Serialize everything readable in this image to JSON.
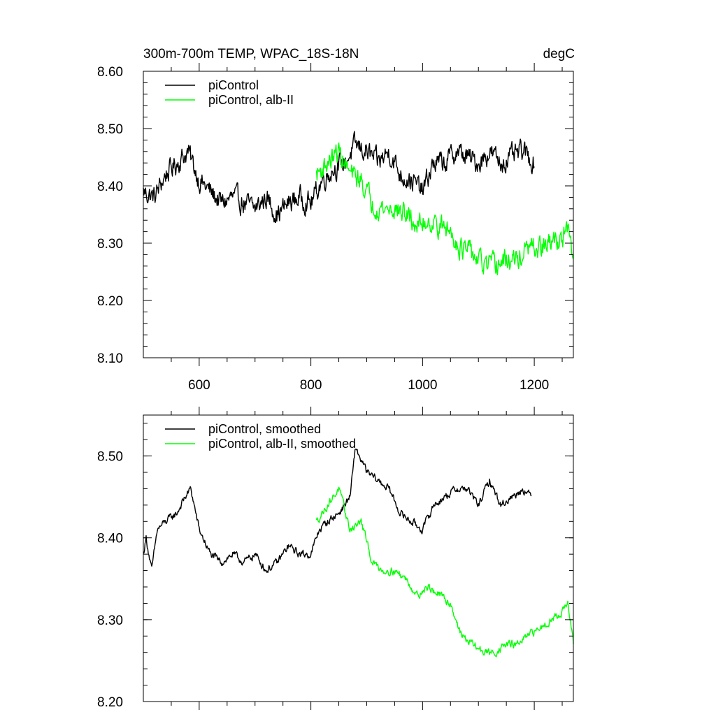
{
  "chart_data": [
    {
      "type": "line",
      "title": "300m-700m TEMP, WPAC_18S-18N",
      "units": "degC",
      "xlim": [
        500,
        1270
      ],
      "ylim": [
        8.1,
        8.6
      ],
      "xticks": [
        600,
        800,
        1000,
        1200
      ],
      "xtick_labels": [
        "600",
        "800",
        "1000",
        "1200"
      ],
      "yticks": [
        8.1,
        8.2,
        8.3,
        8.4,
        8.5,
        8.6
      ],
      "ytick_labels": [
        "8.10",
        "8.20",
        "8.30",
        "8.40",
        "8.50",
        "8.60"
      ],
      "legend_position": "top-left",
      "series": [
        {
          "name": "piControl",
          "color": "#000000",
          "x": [
            500,
            520,
            540,
            560,
            580,
            600,
            620,
            640,
            660,
            680,
            700,
            720,
            740,
            760,
            780,
            800,
            820,
            840,
            860,
            880,
            900,
            920,
            940,
            960,
            980,
            1000,
            1020,
            1040,
            1060,
            1080,
            1100,
            1120,
            1140,
            1160,
            1180,
            1200
          ],
          "values": [
            8.39,
            8.38,
            8.42,
            8.44,
            8.46,
            8.41,
            8.39,
            8.37,
            8.38,
            8.37,
            8.36,
            8.38,
            8.35,
            8.37,
            8.38,
            8.37,
            8.41,
            8.43,
            8.44,
            8.47,
            8.46,
            8.44,
            8.46,
            8.42,
            8.41,
            8.39,
            8.44,
            8.44,
            8.46,
            8.45,
            8.44,
            8.46,
            8.44,
            8.45,
            8.46,
            8.44
          ],
          "noise": 0.028
        },
        {
          "name": "piControl, alb-II",
          "color": "#00ff00",
          "x": [
            810,
            830,
            850,
            870,
            890,
            910,
            930,
            950,
            970,
            990,
            1010,
            1030,
            1050,
            1070,
            1090,
            1110,
            1130,
            1150,
            1170,
            1190,
            1210,
            1230,
            1250,
            1260,
            1270
          ],
          "values": [
            8.42,
            8.44,
            8.46,
            8.42,
            8.41,
            8.37,
            8.36,
            8.36,
            8.35,
            8.33,
            8.34,
            8.33,
            8.32,
            8.29,
            8.28,
            8.26,
            8.26,
            8.27,
            8.27,
            8.29,
            8.29,
            8.3,
            8.31,
            8.32,
            8.27
          ],
          "noise": 0.028
        }
      ]
    },
    {
      "type": "line",
      "title": "",
      "units": "",
      "xlim": [
        500,
        1270
      ],
      "ylim": [
        8.2,
        8.55
      ],
      "xticks": [
        600,
        800,
        1000,
        1200
      ],
      "xtick_labels": [],
      "yticks": [
        8.2,
        8.3,
        8.4,
        8.5
      ],
      "ytick_labels": [
        "8.20",
        "8.30",
        "8.40",
        "8.50"
      ],
      "legend_position": "top-left",
      "series": [
        {
          "name": "piControl, smoothed",
          "color": "#000000",
          "x": [
            500,
            505,
            515,
            525,
            540,
            560,
            575,
            585,
            600,
            620,
            640,
            660,
            680,
            700,
            720,
            740,
            760,
            780,
            800,
            815,
            830,
            850,
            870,
            880,
            900,
            920,
            940,
            960,
            980,
            1000,
            1020,
            1040,
            1060,
            1080,
            1100,
            1120,
            1140,
            1160,
            1180,
            1195
          ],
          "values": [
            8.38,
            8.4,
            8.36,
            8.41,
            8.42,
            8.43,
            8.45,
            8.46,
            8.41,
            8.38,
            8.37,
            8.38,
            8.37,
            8.38,
            8.36,
            8.37,
            8.39,
            8.38,
            8.38,
            8.41,
            8.42,
            8.43,
            8.45,
            8.51,
            8.48,
            8.47,
            8.46,
            8.43,
            8.42,
            8.41,
            8.44,
            8.45,
            8.46,
            8.46,
            8.44,
            8.47,
            8.44,
            8.45,
            8.46,
            8.45
          ],
          "noise": 0.007
        },
        {
          "name": "piControl, alb-II, smoothed",
          "color": "#00ff00",
          "x": [
            810,
            830,
            850,
            870,
            890,
            910,
            930,
            950,
            970,
            990,
            1010,
            1030,
            1050,
            1070,
            1090,
            1110,
            1130,
            1150,
            1170,
            1190,
            1210,
            1230,
            1250,
            1260,
            1270
          ],
          "values": [
            8.42,
            8.44,
            8.46,
            8.41,
            8.42,
            8.37,
            8.36,
            8.36,
            8.35,
            8.33,
            8.34,
            8.33,
            8.32,
            8.28,
            8.27,
            8.26,
            8.26,
            8.27,
            8.27,
            8.28,
            8.29,
            8.3,
            8.31,
            8.32,
            8.27
          ],
          "noise": 0.007
        }
      ]
    }
  ]
}
